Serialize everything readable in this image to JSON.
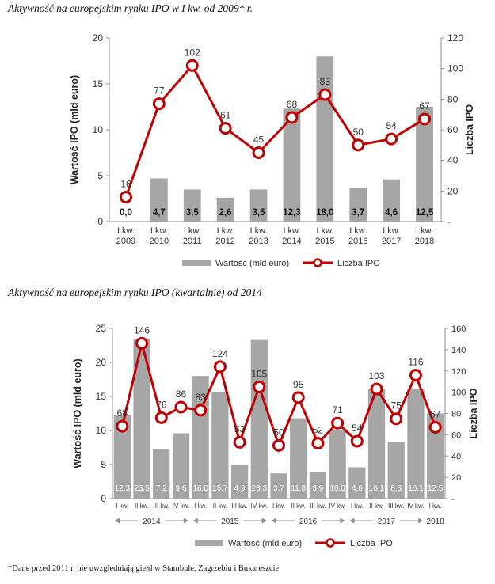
{
  "chart_data": [
    {
      "type": "bar",
      "title": "Aktywność na europejskim rynku IPO w I kw. od 2009* r.",
      "categories": [
        "I kw. 2009",
        "I kw. 2010",
        "I kw. 2011",
        "I kw. 2012",
        "I kw. 2013",
        "I kw. 2014",
        "I kw. 2015",
        "I kw. 2016",
        "I kw. 2017",
        "I kw. 2018"
      ],
      "category_lines": [
        [
          "I kw.",
          "2009"
        ],
        [
          "I kw.",
          "2010"
        ],
        [
          "I kw.",
          "2011"
        ],
        [
          "I kw.",
          "2012"
        ],
        [
          "I kw.",
          "2013"
        ],
        [
          "I kw.",
          "2014"
        ],
        [
          "I kw.",
          "2015"
        ],
        [
          "I kw.",
          "2016"
        ],
        [
          "I kw.",
          "2017"
        ],
        [
          "I kw.",
          "2018"
        ]
      ],
      "series": [
        {
          "name": "Wartość (mld euro)",
          "type": "bar",
          "axis": "left",
          "values": [
            0.0,
            4.7,
            3.5,
            2.6,
            3.5,
            12.3,
            18.0,
            3.7,
            4.6,
            12.5
          ],
          "labels": [
            "0,0",
            "4,7",
            "3,5",
            "2,6",
            "3,5",
            "12,3",
            "18,0",
            "3,7",
            "4,6",
            "12,5"
          ]
        },
        {
          "name": "Liczba IPO",
          "type": "line",
          "axis": "right",
          "values": [
            16,
            77,
            102,
            61,
            45,
            68,
            83,
            50,
            54,
            67
          ]
        }
      ],
      "ylabel": "Wartość IPO (mld euro)",
      "y2label": "Liczba IPO",
      "ylim": [
        0,
        20
      ],
      "yticks": [
        0,
        5,
        10,
        15,
        20
      ],
      "y2lim": [
        0,
        120
      ],
      "y2ticks": [
        "-",
        "20",
        "40",
        "60",
        "80",
        "100",
        "120"
      ],
      "legend": "bottom",
      "grid": false
    },
    {
      "type": "bar",
      "title": "Aktywność na europejskim rynku IPO (kwartalnie) od 2014",
      "categories": [
        "I kw.",
        "II kw.",
        "III kw.",
        "IV kw.",
        "I kw.",
        "II kw.",
        "III kw.",
        "IV kw.",
        "I kw.",
        "II kw.",
        "III kw.",
        "IV kw.",
        "I kw.",
        "II kw.",
        "III kw.",
        "IV kw.",
        "I kw."
      ],
      "year_groups": [
        {
          "label": "2014",
          "start": 0,
          "end": 3
        },
        {
          "label": "2015",
          "start": 4,
          "end": 7
        },
        {
          "label": "2016",
          "start": 8,
          "end": 11
        },
        {
          "label": "2017",
          "start": 12,
          "end": 15
        },
        {
          "label": "2018",
          "start": 16,
          "end": 16
        }
      ],
      "series": [
        {
          "name": "Wartość (mld euro)",
          "type": "bar",
          "axis": "left",
          "values": [
            12.3,
            23.5,
            7.2,
            9.6,
            18.0,
            15.7,
            4.9,
            23.3,
            3.7,
            11.8,
            3.9,
            10.0,
            4.6,
            16.1,
            8.3,
            16.1,
            12.5
          ],
          "labels": [
            "12,3",
            "23,5",
            "7,2",
            "9,6",
            "18,0",
            "15,7",
            "4,9",
            "23,3",
            "3,7",
            "11,8",
            "3,9",
            "10,0",
            "4,6",
            "16,1",
            "8,3",
            "16,1",
            "12,5"
          ]
        },
        {
          "name": "Liczba IPO",
          "type": "line",
          "axis": "right",
          "values": [
            68,
            146,
            76,
            86,
            83,
            124,
            53,
            105,
            50,
            95,
            52,
            71,
            54,
            103,
            75,
            116,
            67
          ]
        }
      ],
      "ylabel": "Wartość IPO (mld euro)",
      "y2label": "Liczba IPO",
      "ylim": [
        0,
        25
      ],
      "yticks": [
        0,
        5,
        10,
        15,
        20,
        25
      ],
      "y2lim": [
        0,
        160
      ],
      "y2ticks": [
        "-",
        "20",
        "40",
        "60",
        "80",
        "100",
        "120",
        "140",
        "160"
      ],
      "legend": "bottom",
      "grid": false
    }
  ],
  "footnote": "*Dane przed 2011 r. nie uwzględniają giełd w Stambule, Zagrzebiu i Bukareszcie",
  "colors": {
    "bar": "#a6a6a6",
    "line": "#c00000",
    "marker_fill": "#ffffff",
    "axis": "#8c8c8c"
  }
}
